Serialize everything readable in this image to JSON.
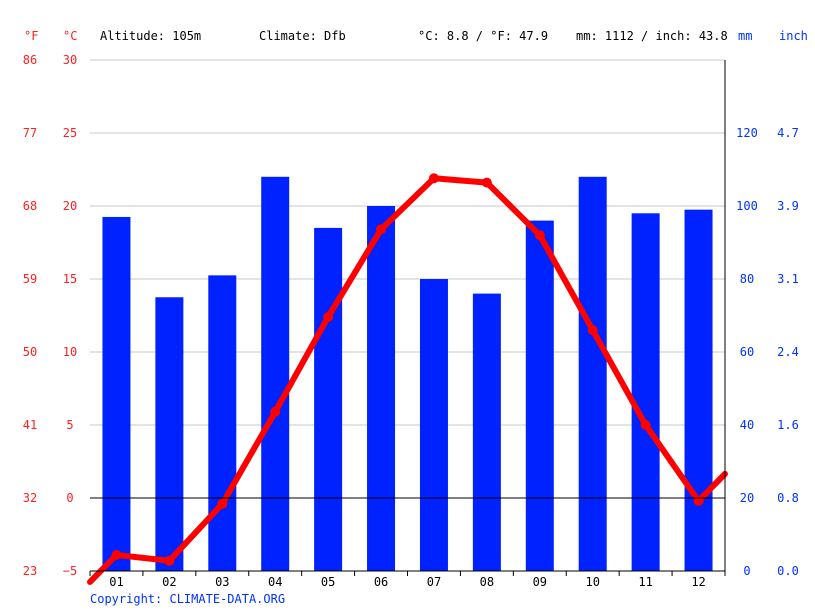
{
  "header": {
    "unit_f": "°F",
    "unit_c": "°C",
    "altitude": "Altitude: 105m",
    "climate": "Climate: Dfb",
    "temp_avg": "°C: 8.8 / °F: 47.9",
    "precip_avg": "mm: 1112 / inch: 43.8",
    "unit_mm": "mm",
    "unit_inch": "inch"
  },
  "footer": {
    "copyright": "Copyright: CLIMATE-DATA.ORG"
  },
  "colors": {
    "temperature": "#ff0000",
    "precipitation": "#0022ff",
    "grid": "#c8c8c8",
    "zero_line": "#000000"
  },
  "chart_data": {
    "type": "bar",
    "categories": [
      "01",
      "02",
      "03",
      "04",
      "05",
      "06",
      "07",
      "08",
      "09",
      "10",
      "11",
      "12"
    ],
    "series": [
      {
        "type": "bar",
        "axis": "right",
        "values": [
          97,
          75,
          81,
          108,
          94,
          100,
          80,
          76,
          96,
          108,
          98,
          99
        ]
      },
      {
        "type": "line",
        "axis": "left",
        "values": [
          -3.9,
          -4.3,
          -0.4,
          5.9,
          12.4,
          18.4,
          21.9,
          21.6,
          18.0,
          11.5,
          5.0,
          -0.2
        ]
      }
    ],
    "left_axis_c": {
      "ticks": [
        30,
        25,
        20,
        15,
        10,
        5,
        0,
        -5
      ],
      "range": [
        -5,
        30
      ]
    },
    "left_axis_f": {
      "ticks": [
        86,
        77,
        68,
        59,
        50,
        41,
        32,
        23
      ]
    },
    "right_axis_mm": {
      "ticks": [
        120,
        100,
        80,
        60,
        40,
        20,
        0
      ],
      "range": [
        0,
        140
      ]
    },
    "right_axis_inch": {
      "ticks": [
        "4.7",
        "3.9",
        "3.1",
        "2.4",
        "1.6",
        "0.8",
        "0.0"
      ]
    },
    "grid": true
  }
}
